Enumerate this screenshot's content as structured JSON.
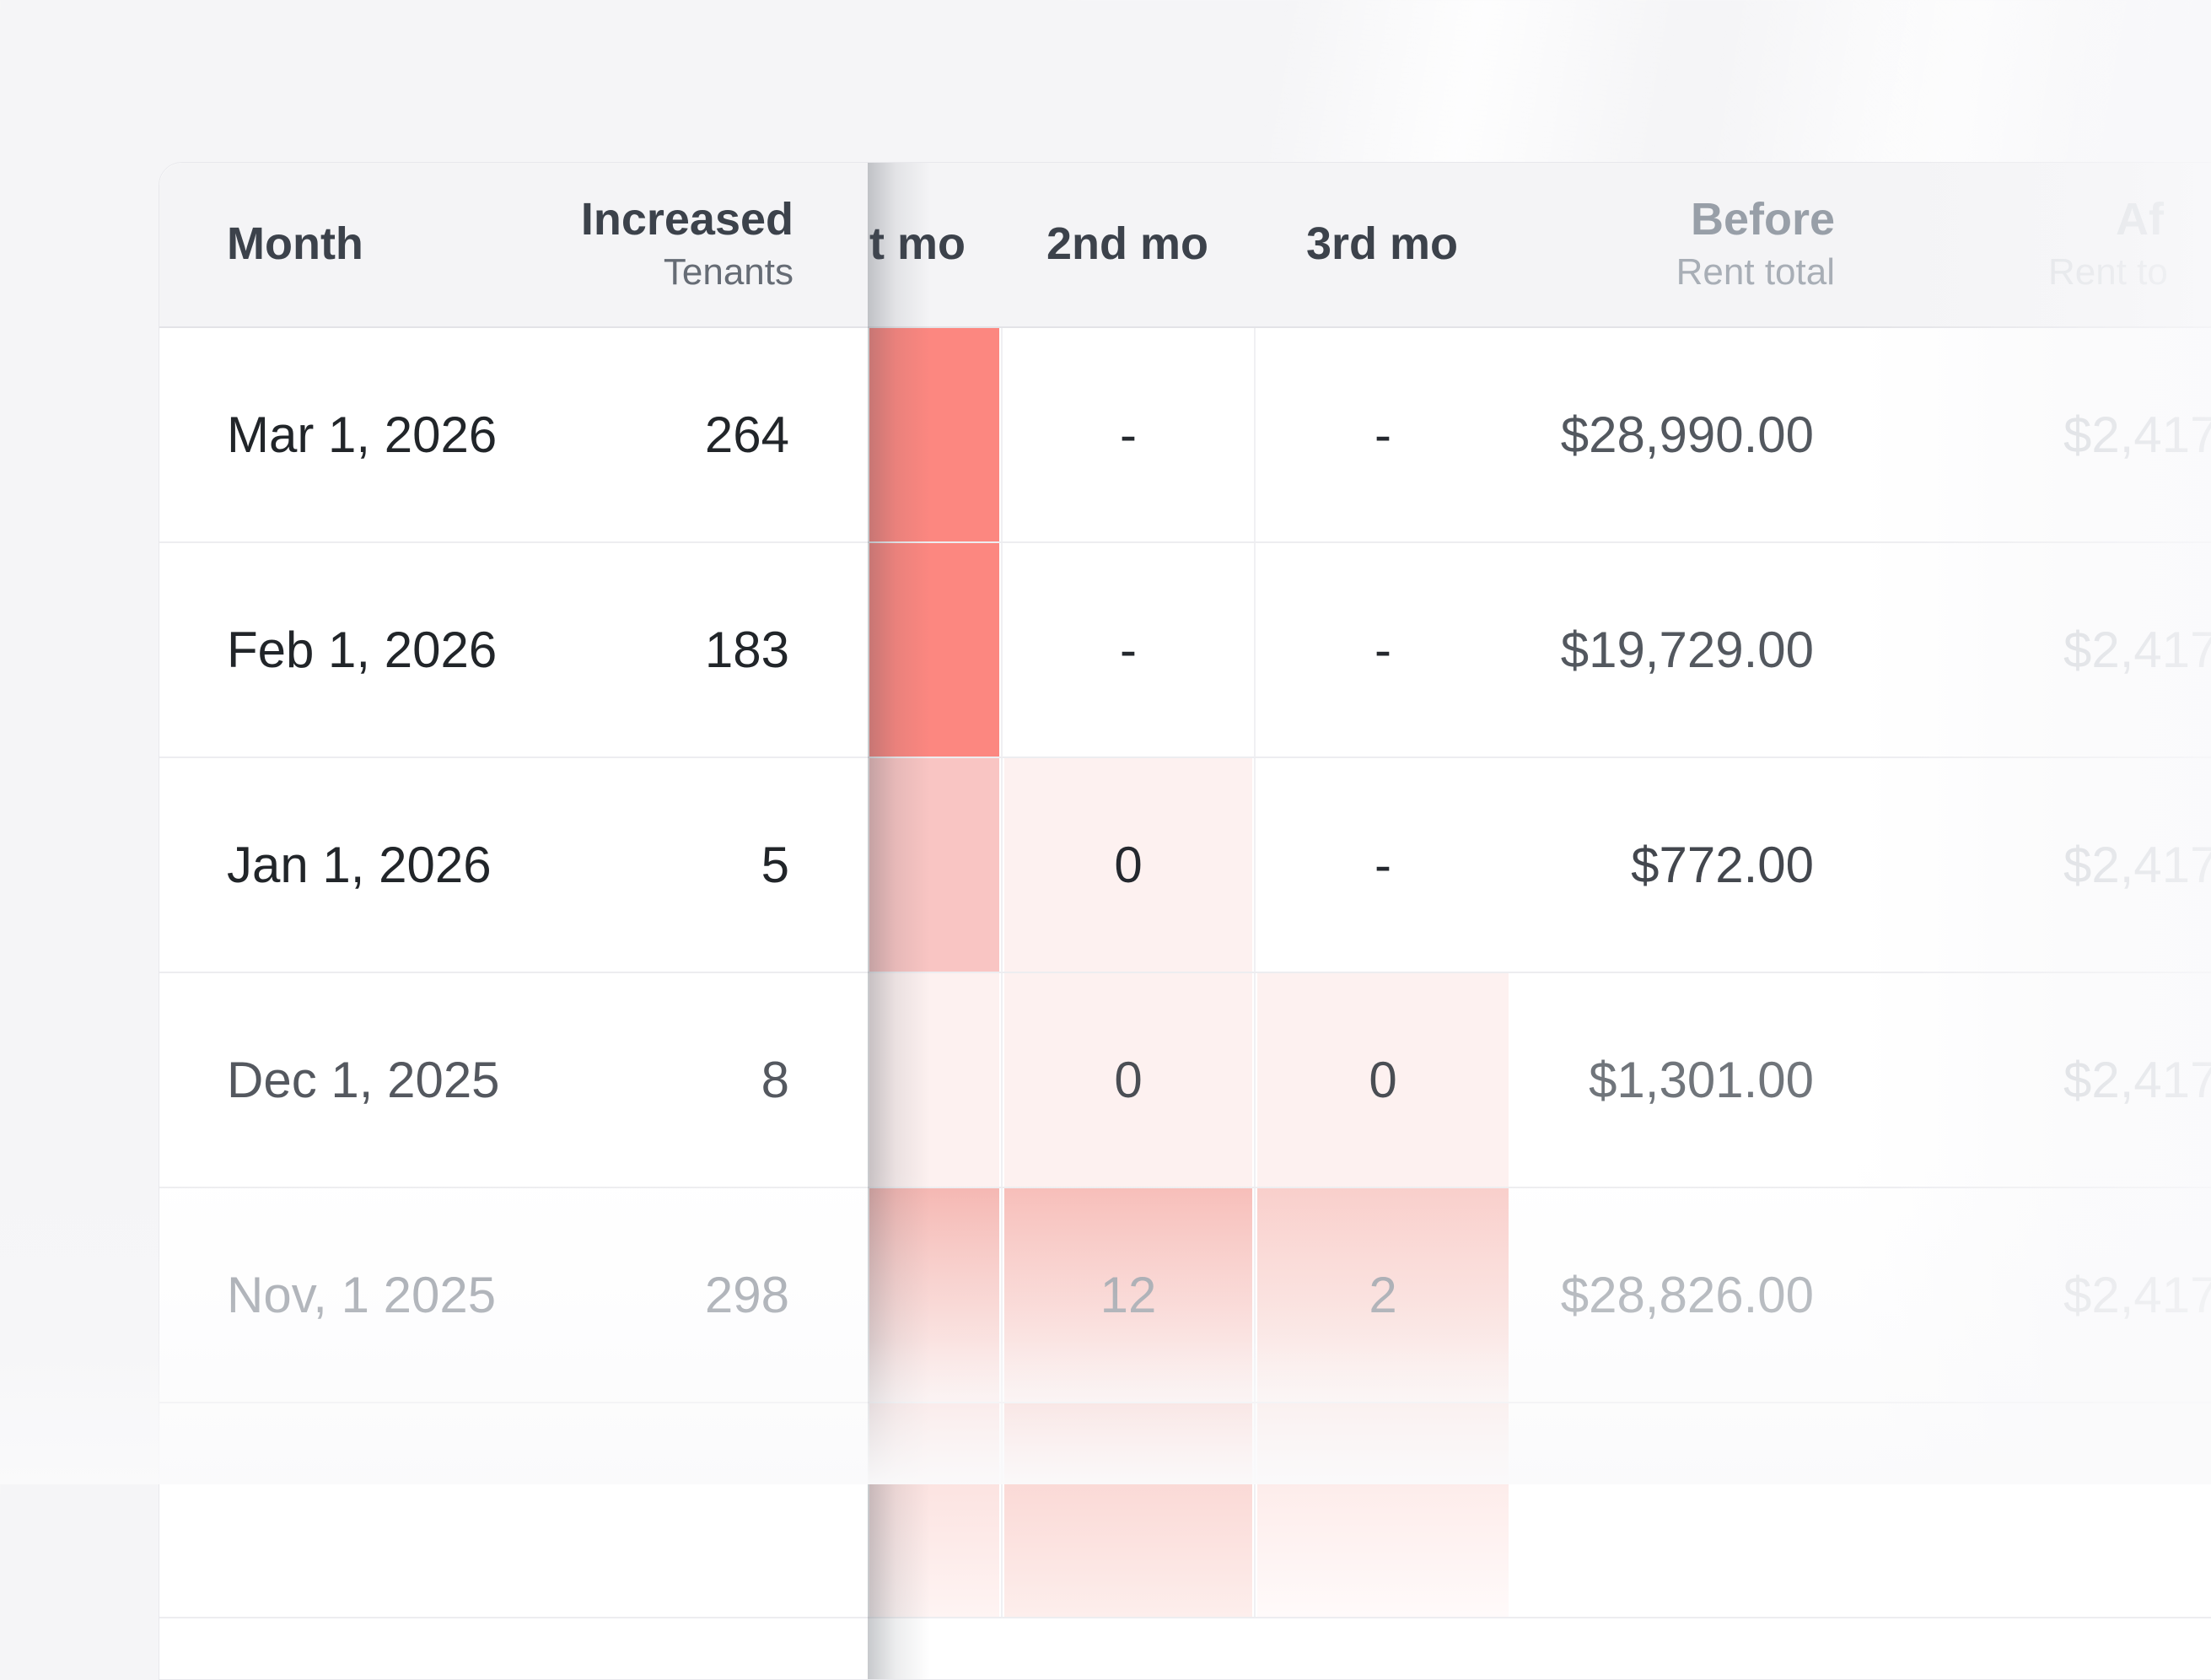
{
  "table": {
    "header": {
      "month": {
        "label": "Month"
      },
      "increased": {
        "label": "Increased",
        "sublabel": "Tenants"
      },
      "mo1": {
        "label": "t mo"
      },
      "mo2": {
        "label": "2nd mo"
      },
      "mo3": {
        "label": "3rd mo"
      },
      "before": {
        "label": "Before",
        "sublabel": "Rent total"
      },
      "after": {
        "label": "Af",
        "sublabel": "Rent to"
      }
    },
    "rows": [
      {
        "month": "Mar 1, 2026",
        "increased": "264",
        "mo1": "",
        "mo2": "-",
        "mo3": "-",
        "before": "$28,990.00",
        "after": "$2,417"
      },
      {
        "month": "Feb 1, 2026",
        "increased": "183",
        "mo1": "",
        "mo2": "-",
        "mo3": "-",
        "before": "$19,729.00",
        "after": "$2,417"
      },
      {
        "month": "Jan 1, 2026",
        "increased": "5",
        "mo1": "",
        "mo2": "0",
        "mo3": "-",
        "before": "$772.00",
        "after": "$2,417"
      },
      {
        "month": "Dec 1, 2025",
        "increased": "8",
        "mo1": "",
        "mo2": "0",
        "mo3": "0",
        "before": "$1,301.00",
        "after": "$2,417"
      },
      {
        "month": "Nov, 1 2025",
        "increased": "298",
        "mo1": "",
        "mo2": "12",
        "mo3": "2",
        "before": "$28,826.00",
        "after": "$2,417"
      }
    ],
    "heatmap_colors": {
      "strong": "#fc8780",
      "medium": "#f9c5c3",
      "faint": "#fdf1f0",
      "nov_gradient_top_1st": "#f5b5b0",
      "nov_gradient_top_2nd": "#f7bcb7",
      "nov_gradient_top_3rd": "#f9cdc9"
    },
    "ui_colors": {
      "header_bg": "#f4f4f6",
      "card_bg": "#ffffff",
      "page_bg": "#f5f5f7",
      "row_border": "#ededf0",
      "header_text": "#3c424b",
      "faded_column_text": "#cdd1d6",
      "frozen_pane_shadow": "rgba(71,77,87,0.30)"
    }
  }
}
